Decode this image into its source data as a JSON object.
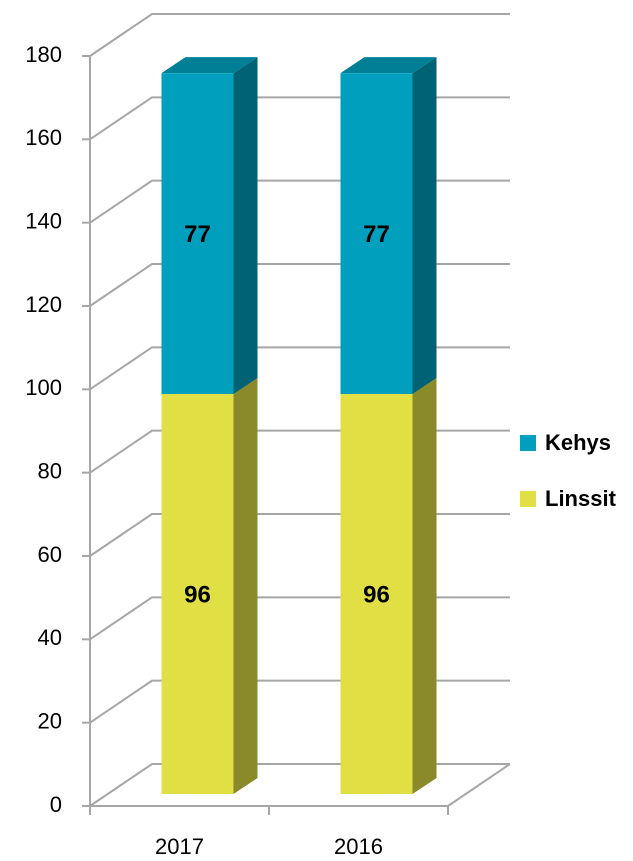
{
  "chart_data": {
    "type": "bar3d_stacked",
    "categories": [
      "2017",
      "2016"
    ],
    "series": [
      {
        "name": "Linssit",
        "color": "#e0df44",
        "values": [
          96,
          96
        ]
      },
      {
        "name": "Kehys",
        "color": "#009fbd",
        "values": [
          77,
          77
        ]
      }
    ],
    "ylim": [
      0,
      180
    ],
    "yticks": [
      0,
      20,
      40,
      60,
      80,
      100,
      120,
      140,
      160,
      180
    ],
    "grid": true,
    "legend": "right"
  }
}
